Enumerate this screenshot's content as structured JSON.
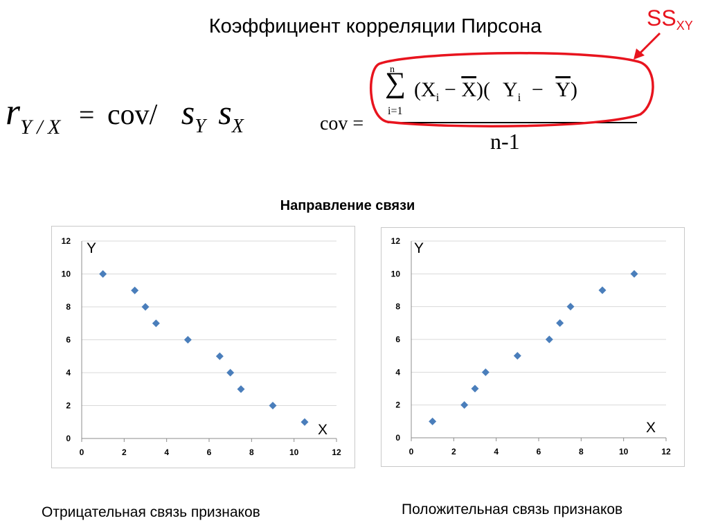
{
  "title": "Коэффициент корреляции Пирсона",
  "annotation": {
    "main": "SS",
    "sub": "XY",
    "color": "#e8141e"
  },
  "formula_r": {
    "r": "r",
    "r_sub": "Y / X",
    "equals": "=",
    "cov": "cov/",
    "s1": "s",
    "s1_sub": "Y",
    "s2": "s",
    "s2_sub": "X"
  },
  "formula_cov": {
    "lhs": "cov =",
    "sum_top": "n",
    "sum_bottom": "i=1",
    "sigma": "∑",
    "numerator": [
      "(X",
      "i",
      " − ",
      "X",
      ")(",
      "Y",
      "i",
      " − ",
      "Y",
      ")"
    ],
    "denominator": "n-1"
  },
  "section_title": "Направление связи",
  "captions": {
    "left": "Отрицательная связь признаков",
    "right": "Положительная связь признаков"
  },
  "chart_data": [
    {
      "type": "scatter",
      "series_color": "#4a7ebb",
      "axis_y_label": "Y",
      "axis_x_label": "X",
      "xlim": [
        0,
        12
      ],
      "ylim": [
        0,
        12
      ],
      "x_ticks": [
        0,
        2,
        4,
        6,
        8,
        10,
        12
      ],
      "y_ticks": [
        0,
        2,
        4,
        6,
        8,
        10,
        12
      ],
      "grid": "horizontal",
      "x": [
        1,
        2.5,
        3,
        3.5,
        5,
        6.5,
        7,
        7.5,
        9,
        10.5
      ],
      "y": [
        10,
        9,
        8,
        7,
        6,
        5,
        4,
        3,
        2,
        1
      ]
    },
    {
      "type": "scatter",
      "series_color": "#4a7ebb",
      "axis_y_label": "Y",
      "axis_x_label": "X",
      "xlim": [
        0,
        12
      ],
      "ylim": [
        0,
        12
      ],
      "x_ticks": [
        0,
        2,
        4,
        6,
        8,
        10,
        12
      ],
      "y_ticks": [
        0,
        2,
        4,
        6,
        8,
        10,
        12
      ],
      "grid": "horizontal",
      "x": [
        1,
        2.5,
        3,
        3.5,
        5,
        6.5,
        7,
        7.5,
        9,
        10.5
      ],
      "y": [
        1,
        2,
        3,
        4,
        5,
        6,
        7,
        8,
        9,
        10
      ]
    }
  ]
}
